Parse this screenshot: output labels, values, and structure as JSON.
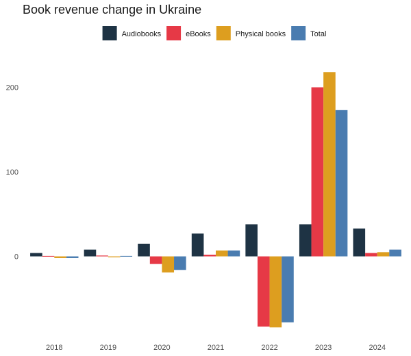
{
  "chart_data": {
    "type": "bar",
    "title": "Book revenue change in Ukraine",
    "xlabel": "",
    "ylabel": "",
    "categories": [
      "2018",
      "2019",
      "2020",
      "2021",
      "2022",
      "2023",
      "2024"
    ],
    "series": [
      {
        "name": "Audiobooks",
        "color": "#1e3344",
        "values": [
          4,
          8,
          15,
          27,
          38,
          38,
          33
        ]
      },
      {
        "name": "eBooks",
        "color": "#e63946",
        "values": [
          0.5,
          1,
          -9,
          2,
          -83,
          200,
          4
        ]
      },
      {
        "name": "Physical books",
        "color": "#dd9e1f",
        "values": [
          -2,
          -1,
          -19,
          7,
          -84,
          218,
          5
        ]
      },
      {
        "name": "Total",
        "color": "#4a7cb0",
        "values": [
          -2,
          0.5,
          -16,
          7,
          -78,
          173,
          8
        ]
      }
    ],
    "yticks": [
      0,
      100,
      200
    ],
    "ylim": [
      -100,
      235
    ],
    "grid": false,
    "legend": "top"
  }
}
